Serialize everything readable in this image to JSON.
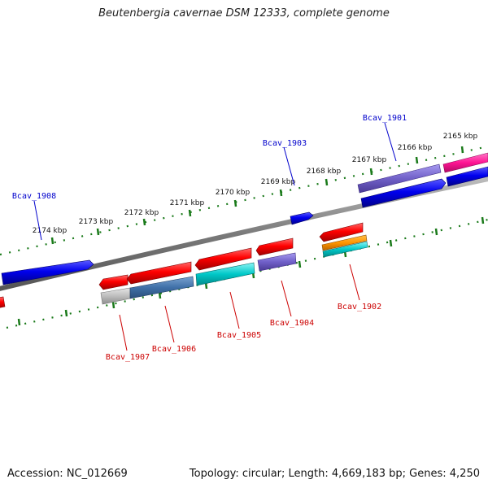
{
  "title": "Beutenbergia cavernae DSM 12333, complete genome",
  "footer": {
    "accession": "Accession: NC_012669",
    "summary": "Topology: circular; Length: 4,669,183 bp; Genes: 4,250"
  },
  "scale_ticks": [
    "2165 kbp",
    "2166 kbp",
    "2167 kbp",
    "2168 kbp",
    "2169 kbp",
    "2170 kbp",
    "2171 kbp",
    "2172 kbp",
    "2173 kbp",
    "2174 kbp"
  ],
  "genes_top": [
    "Bcav_1901",
    "Bcav_1903",
    "Bcav_1908"
  ],
  "genes_bottom": [
    "Bcav_1902",
    "Bcav_1904",
    "Bcav_1905",
    "Bcav_1906",
    "Bcav_1907"
  ],
  "colors": {
    "top_label": "#0000cc",
    "bottom_label": "#cc0000",
    "backbone": "#808080",
    "tick": "#1a7a1a"
  }
}
